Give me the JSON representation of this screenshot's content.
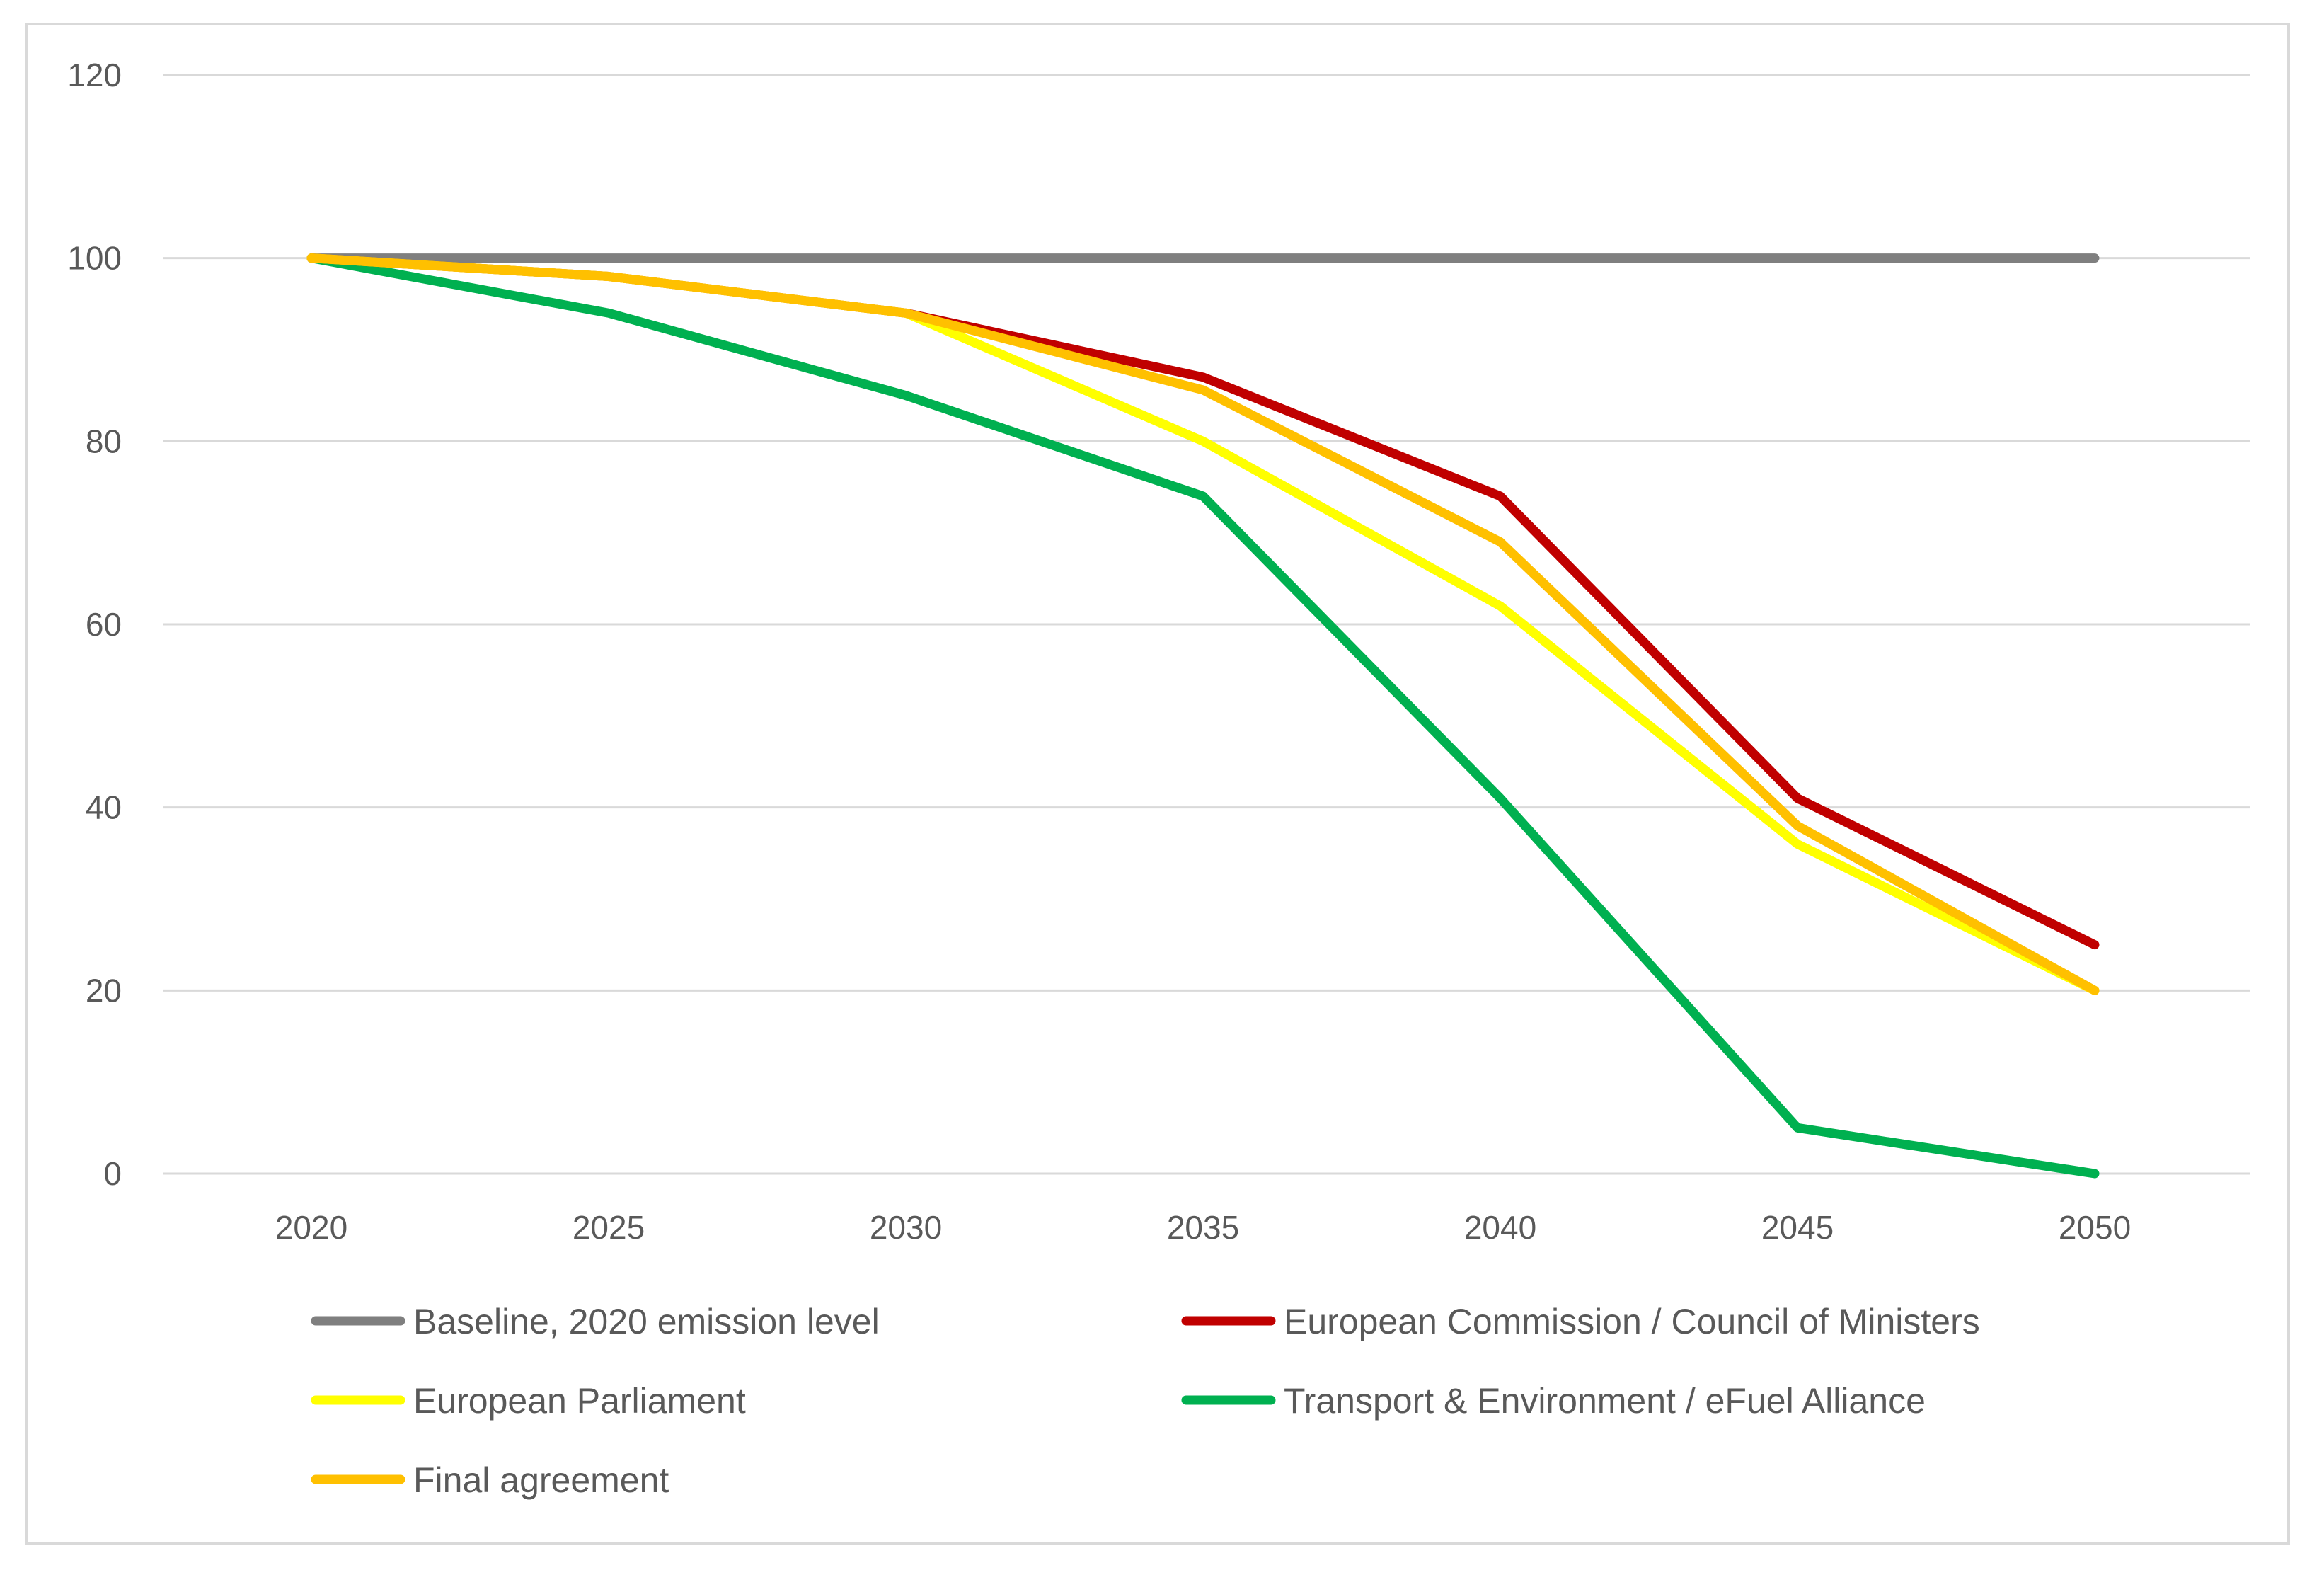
{
  "chart_data": {
    "type": "line",
    "title": "",
    "xlabel": "",
    "ylabel": "",
    "x": [
      "2020",
      "2025",
      "2030",
      "2035",
      "2040",
      "2045",
      "2050"
    ],
    "ylim": [
      0,
      120
    ],
    "yticks": [
      0,
      20,
      40,
      60,
      80,
      100,
      120
    ],
    "grid": true,
    "legend_position": "bottom",
    "series": [
      {
        "name": "Baseline, 2020 emission level",
        "color": "#7f7f7f",
        "values": [
          100,
          100,
          100,
          100,
          100,
          100,
          100
        ]
      },
      {
        "name": "European Commission / Council of Ministers",
        "color": "#c00000",
        "values": [
          100,
          98,
          94,
          87,
          74,
          41,
          25
        ]
      },
      {
        "name": "European Parliament",
        "color": "#ffff00",
        "values": [
          100,
          98,
          94,
          80,
          62,
          36,
          20
        ]
      },
      {
        "name": "Transport & Environment / eFuel Alliance",
        "color": "#00b050",
        "values": [
          100,
          94,
          85,
          74,
          41,
          5,
          0
        ]
      },
      {
        "name": "Final agreement",
        "color": "#ffc000",
        "values": [
          100,
          98,
          94,
          85.6,
          69,
          38,
          20
        ]
      }
    ]
  }
}
